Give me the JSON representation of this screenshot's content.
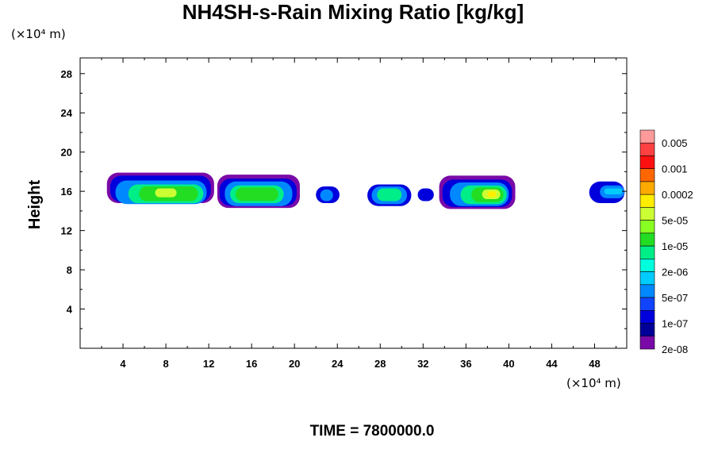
{
  "chart_data": {
    "type": "heatmap",
    "title": "NH4SH-s-Rain Mixing Ratio [kg/kg]",
    "ylabel": "Height",
    "xlabel": "",
    "x_unit": "(×10⁴ m)",
    "y_unit": "(×10⁴ m)",
    "x_ticks": [
      4,
      8,
      12,
      16,
      20,
      24,
      28,
      32,
      36,
      40,
      44,
      48
    ],
    "y_ticks": [
      4,
      8,
      12,
      16,
      20,
      24,
      28
    ],
    "xlim": [
      0,
      51
    ],
    "ylim": [
      0,
      29.6
    ],
    "legend": {
      "placement": "right",
      "labels": [
        "0.005",
        "0.001",
        "0.0002",
        "5e-05",
        "1e-05",
        "2e-06",
        "5e-07",
        "1e-07",
        "2e-08"
      ],
      "colors": [
        "#ff9a9a",
        "#ff4040",
        "#ff1010",
        "#ff6600",
        "#ffaa00",
        "#ffee00",
        "#ccff33",
        "#88ff22",
        "#22dd22",
        "#00ee88",
        "#00ffdd",
        "#00ccff",
        "#0088ff",
        "#1144ff",
        "#0000dd",
        "#000099",
        "#7a0aa8"
      ]
    },
    "cells": [
      {
        "x0": 2.5,
        "x1": 12.5,
        "y0": 14.8,
        "y1": 17.9,
        "level": "2e-08",
        "color": "#7a0aa8"
      },
      {
        "x0": 2.8,
        "x1": 12.2,
        "y0": 14.9,
        "y1": 17.6,
        "level": "1e-07",
        "color": "#0000dd"
      },
      {
        "x0": 3.3,
        "x1": 11.8,
        "y0": 14.7,
        "y1": 17.1,
        "level": "5e-07",
        "color": "#0088ff"
      },
      {
        "x0": 4.5,
        "x1": 11.5,
        "y0": 14.8,
        "y1": 16.7,
        "level": "2e-06",
        "color": "#00ee88"
      },
      {
        "x0": 5.5,
        "x1": 11.0,
        "y0": 15.0,
        "y1": 16.5,
        "level": "1e-05",
        "color": "#22dd22"
      },
      {
        "x0": 7.0,
        "x1": 9.0,
        "y0": 15.4,
        "y1": 16.3,
        "level": "5e-05",
        "color": "#ccff33"
      },
      {
        "x0": 12.8,
        "x1": 20.5,
        "y0": 14.3,
        "y1": 17.7,
        "level": "2e-08",
        "color": "#7a0aa8"
      },
      {
        "x0": 13.0,
        "x1": 20.2,
        "y0": 14.5,
        "y1": 17.3,
        "level": "1e-07",
        "color": "#0000dd"
      },
      {
        "x0": 13.5,
        "x1": 19.8,
        "y0": 14.5,
        "y1": 17.0,
        "level": "5e-07",
        "color": "#0088ff"
      },
      {
        "x0": 14.0,
        "x1": 19.0,
        "y0": 14.8,
        "y1": 16.6,
        "level": "2e-06",
        "color": "#00ee88"
      },
      {
        "x0": 14.5,
        "x1": 18.5,
        "y0": 15.0,
        "y1": 16.4,
        "level": "1e-05",
        "color": "#22dd22"
      },
      {
        "x0": 22.0,
        "x1": 24.2,
        "y0": 14.8,
        "y1": 16.5,
        "level": "1e-07",
        "color": "#0000dd"
      },
      {
        "x0": 22.4,
        "x1": 23.6,
        "y0": 15.0,
        "y1": 16.2,
        "level": "5e-07",
        "color": "#0088ff"
      },
      {
        "x0": 26.8,
        "x1": 30.9,
        "y0": 14.5,
        "y1": 16.7,
        "level": "1e-07",
        "color": "#0000dd"
      },
      {
        "x0": 27.2,
        "x1": 30.5,
        "y0": 14.7,
        "y1": 16.5,
        "level": "5e-07",
        "color": "#0088ff"
      },
      {
        "x0": 27.7,
        "x1": 30.0,
        "y0": 15.0,
        "y1": 16.3,
        "level": "2e-06",
        "color": "#00ee88"
      },
      {
        "x0": 31.5,
        "x1": 33.0,
        "y0": 15.0,
        "y1": 16.3,
        "level": "1e-07",
        "color": "#0000dd"
      },
      {
        "x0": 33.5,
        "x1": 40.6,
        "y0": 14.2,
        "y1": 17.6,
        "level": "2e-08",
        "color": "#7a0aa8"
      },
      {
        "x0": 33.8,
        "x1": 40.3,
        "y0": 14.4,
        "y1": 17.2,
        "level": "1e-07",
        "color": "#0000dd"
      },
      {
        "x0": 34.5,
        "x1": 40.0,
        "y0": 14.5,
        "y1": 16.9,
        "level": "5e-07",
        "color": "#0088ff"
      },
      {
        "x0": 35.5,
        "x1": 39.8,
        "y0": 14.7,
        "y1": 16.6,
        "level": "2e-06",
        "color": "#00ee88"
      },
      {
        "x0": 36.5,
        "x1": 39.5,
        "y0": 14.9,
        "y1": 16.4,
        "level": "1e-05",
        "color": "#22dd22"
      },
      {
        "x0": 37.5,
        "x1": 39.2,
        "y0": 15.2,
        "y1": 16.2,
        "level": "5e-05",
        "color": "#ccff33"
      },
      {
        "x0": 38.0,
        "x1": 38.8,
        "y0": 15.4,
        "y1": 16.0,
        "level": "0.0002",
        "color": "#ffee00"
      },
      {
        "x0": 47.5,
        "x1": 50.8,
        "y0": 14.8,
        "y1": 17.0,
        "level": "1e-07",
        "color": "#0000dd"
      },
      {
        "x0": 48.5,
        "x1": 50.8,
        "y0": 15.3,
        "y1": 16.6,
        "level": "5e-07",
        "color": "#0088ff"
      },
      {
        "x0": 48.9,
        "x1": 50.6,
        "y0": 15.7,
        "y1": 16.3,
        "level": "5e-07",
        "color": "#00ccff"
      }
    ]
  },
  "footer": {
    "time_label": "TIME = 7800000.0"
  }
}
